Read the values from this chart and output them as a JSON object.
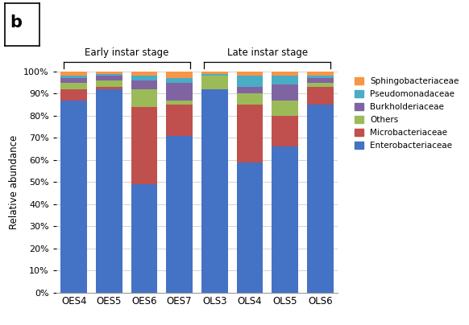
{
  "categories": [
    "OES4",
    "OES5",
    "OES6",
    "OES7",
    "OLS3",
    "OLS4",
    "OLS5",
    "OLS6"
  ],
  "series": {
    "Enterobacteriaceae": [
      87,
      92,
      49,
      71,
      92,
      59,
      66,
      85
    ],
    "Microbacteriaceae": [
      5,
      1,
      35,
      14,
      0,
      26,
      14,
      8
    ],
    "Others": [
      3,
      3,
      8,
      2,
      6,
      5,
      7,
      2
    ],
    "Burkholderiaceae": [
      2,
      2,
      4,
      8,
      0,
      3,
      7,
      2
    ],
    "Pseudomonadaceae": [
      1,
      1,
      2,
      2,
      1,
      5,
      4,
      1
    ],
    "Sphingobacteriaceae": [
      2,
      1,
      2,
      3,
      1,
      2,
      2,
      2
    ]
  },
  "colors": {
    "Enterobacteriaceae": "#4472C4",
    "Microbacteriaceae": "#C0504D",
    "Others": "#9BBB59",
    "Burkholderiaceae": "#8064A2",
    "Pseudomonadaceae": "#4BACC6",
    "Sphingobacteriaceae": "#F79646"
  },
  "ylabel": "Relative abundance",
  "ytick_labels": [
    "0%",
    "10%",
    "20%",
    "30%",
    "40%",
    "50%",
    "60%",
    "70%",
    "80%",
    "90%",
    "100%"
  ],
  "early_label": "Early instar stage",
  "late_label": "Late instar stage",
  "panel_label": "b",
  "background_color": "#FFFFFF",
  "grid_color": "#CCCCCC",
  "bar_width": 0.75
}
